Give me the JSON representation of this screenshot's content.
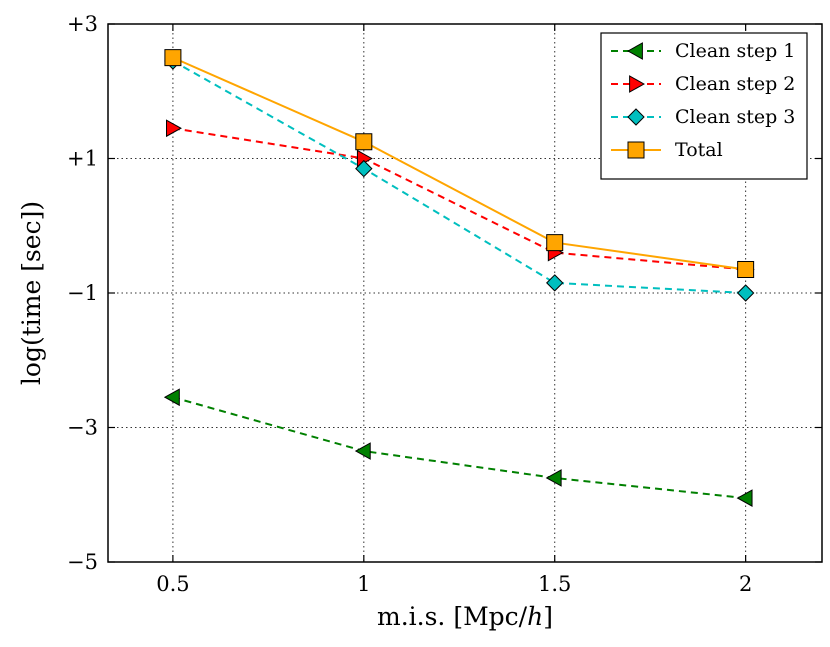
{
  "chart_data": {
    "type": "line",
    "title": "",
    "xlabel": "m.i.s. [Mpc/",
    "xlabel_italic": "h",
    "xlabel_suffix": "]",
    "ylabel": "log(time [sec])",
    "xlim": [
      0.33,
      2.2
    ],
    "ylim": [
      -5,
      3
    ],
    "grid": true,
    "legend_position": "top-right",
    "x": [
      0.5,
      1,
      1.5,
      2
    ],
    "x_tick_labels": [
      "0.5",
      "1",
      "1.5",
      "2"
    ],
    "y_ticks": [
      3,
      1,
      -1,
      -3,
      -5
    ],
    "y_tick_labels": [
      "+3",
      "+1",
      "−1",
      "−3",
      "−5"
    ],
    "series": [
      {
        "name": "Clean step 1",
        "values": [
          -2.55,
          -3.35,
          -3.75,
          -4.05
        ],
        "color": "#008000",
        "dash": "dashed",
        "marker": "triangle-left"
      },
      {
        "name": "Clean step 2",
        "values": [
          1.45,
          1.0,
          -0.4,
          -0.65
        ],
        "color": "#ff0000",
        "dash": "dashed",
        "marker": "triangle-right"
      },
      {
        "name": "Clean step 3",
        "values": [
          2.45,
          0.85,
          -0.85,
          -1.0
        ],
        "color": "#00bfbf",
        "dash": "dashed",
        "marker": "diamond"
      },
      {
        "name": "Total",
        "values": [
          2.5,
          1.25,
          -0.25,
          -0.65
        ],
        "color": "#ffa500",
        "dash": "solid",
        "marker": "square"
      }
    ]
  }
}
